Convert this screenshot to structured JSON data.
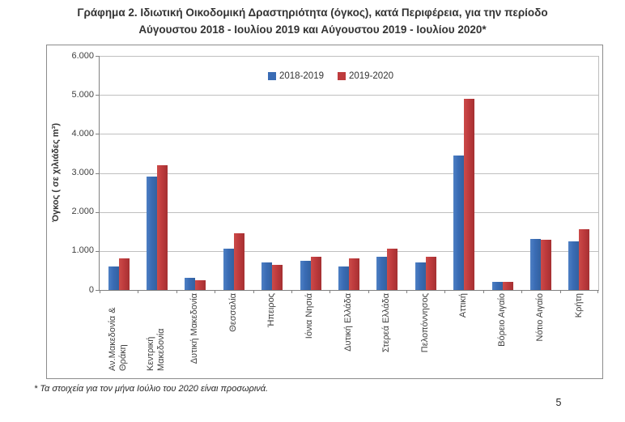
{
  "title": {
    "line1": "Γράφημα 2. Ιδιωτική Οικοδομική Δραστηριότητα (όγκος), κατά Περιφέρεια, για την περίοδο",
    "line2": "Αύγουστου 2018 - Ιουλίου 2019 και Αύγουστου 2019 - Ιουλίου 2020*"
  },
  "footnote": "* Τα στοιχεία για τον μήνα Ιούλιο του 2020 είναι προσωρινά.",
  "page_number": "5",
  "chart_data": {
    "type": "bar",
    "title": "Ιδιωτική Οικοδομική Δραστηριότητα (όγκος), κατά Περιφέρεια",
    "categories": [
      "Αν.Μακεδονία & Θράκη",
      "Κεντρική Μακεδονία",
      "Δυτική Μακεδονία",
      "Θεσσαλία",
      "Ήπειρος",
      "Ιόνια Νησιά",
      "Δυτική Ελλάδα",
      "Στερεά Ελλάδα",
      "Πελοπόννησος",
      "Αττική",
      "Βόρειο Αιγαίο",
      "Νότιο Αιγαίο",
      "Κρήτη"
    ],
    "series": [
      {
        "name": "2018-2019",
        "color": "#3A6CB5",
        "values": [
          600,
          2900,
          320,
          1050,
          700,
          750,
          600,
          850,
          700,
          3450,
          200,
          1300,
          1250
        ]
      },
      {
        "name": "2019-2020",
        "color": "#BE3B3D",
        "values": [
          800,
          3200,
          250,
          1450,
          650,
          850,
          800,
          1050,
          850,
          4900,
          200,
          1280,
          1550
        ]
      }
    ],
    "xlabel": "",
    "ylabel": "Όγκος ( σε χιλιάδες  m³)",
    "ylim": [
      0,
      6000
    ],
    "ytick_step": 1000,
    "ytick_labels": [
      "0",
      "1.000",
      "2.000",
      "3.000",
      "4.000",
      "5.000",
      "6.000"
    ],
    "grid": true,
    "legend_position": "top-center"
  }
}
